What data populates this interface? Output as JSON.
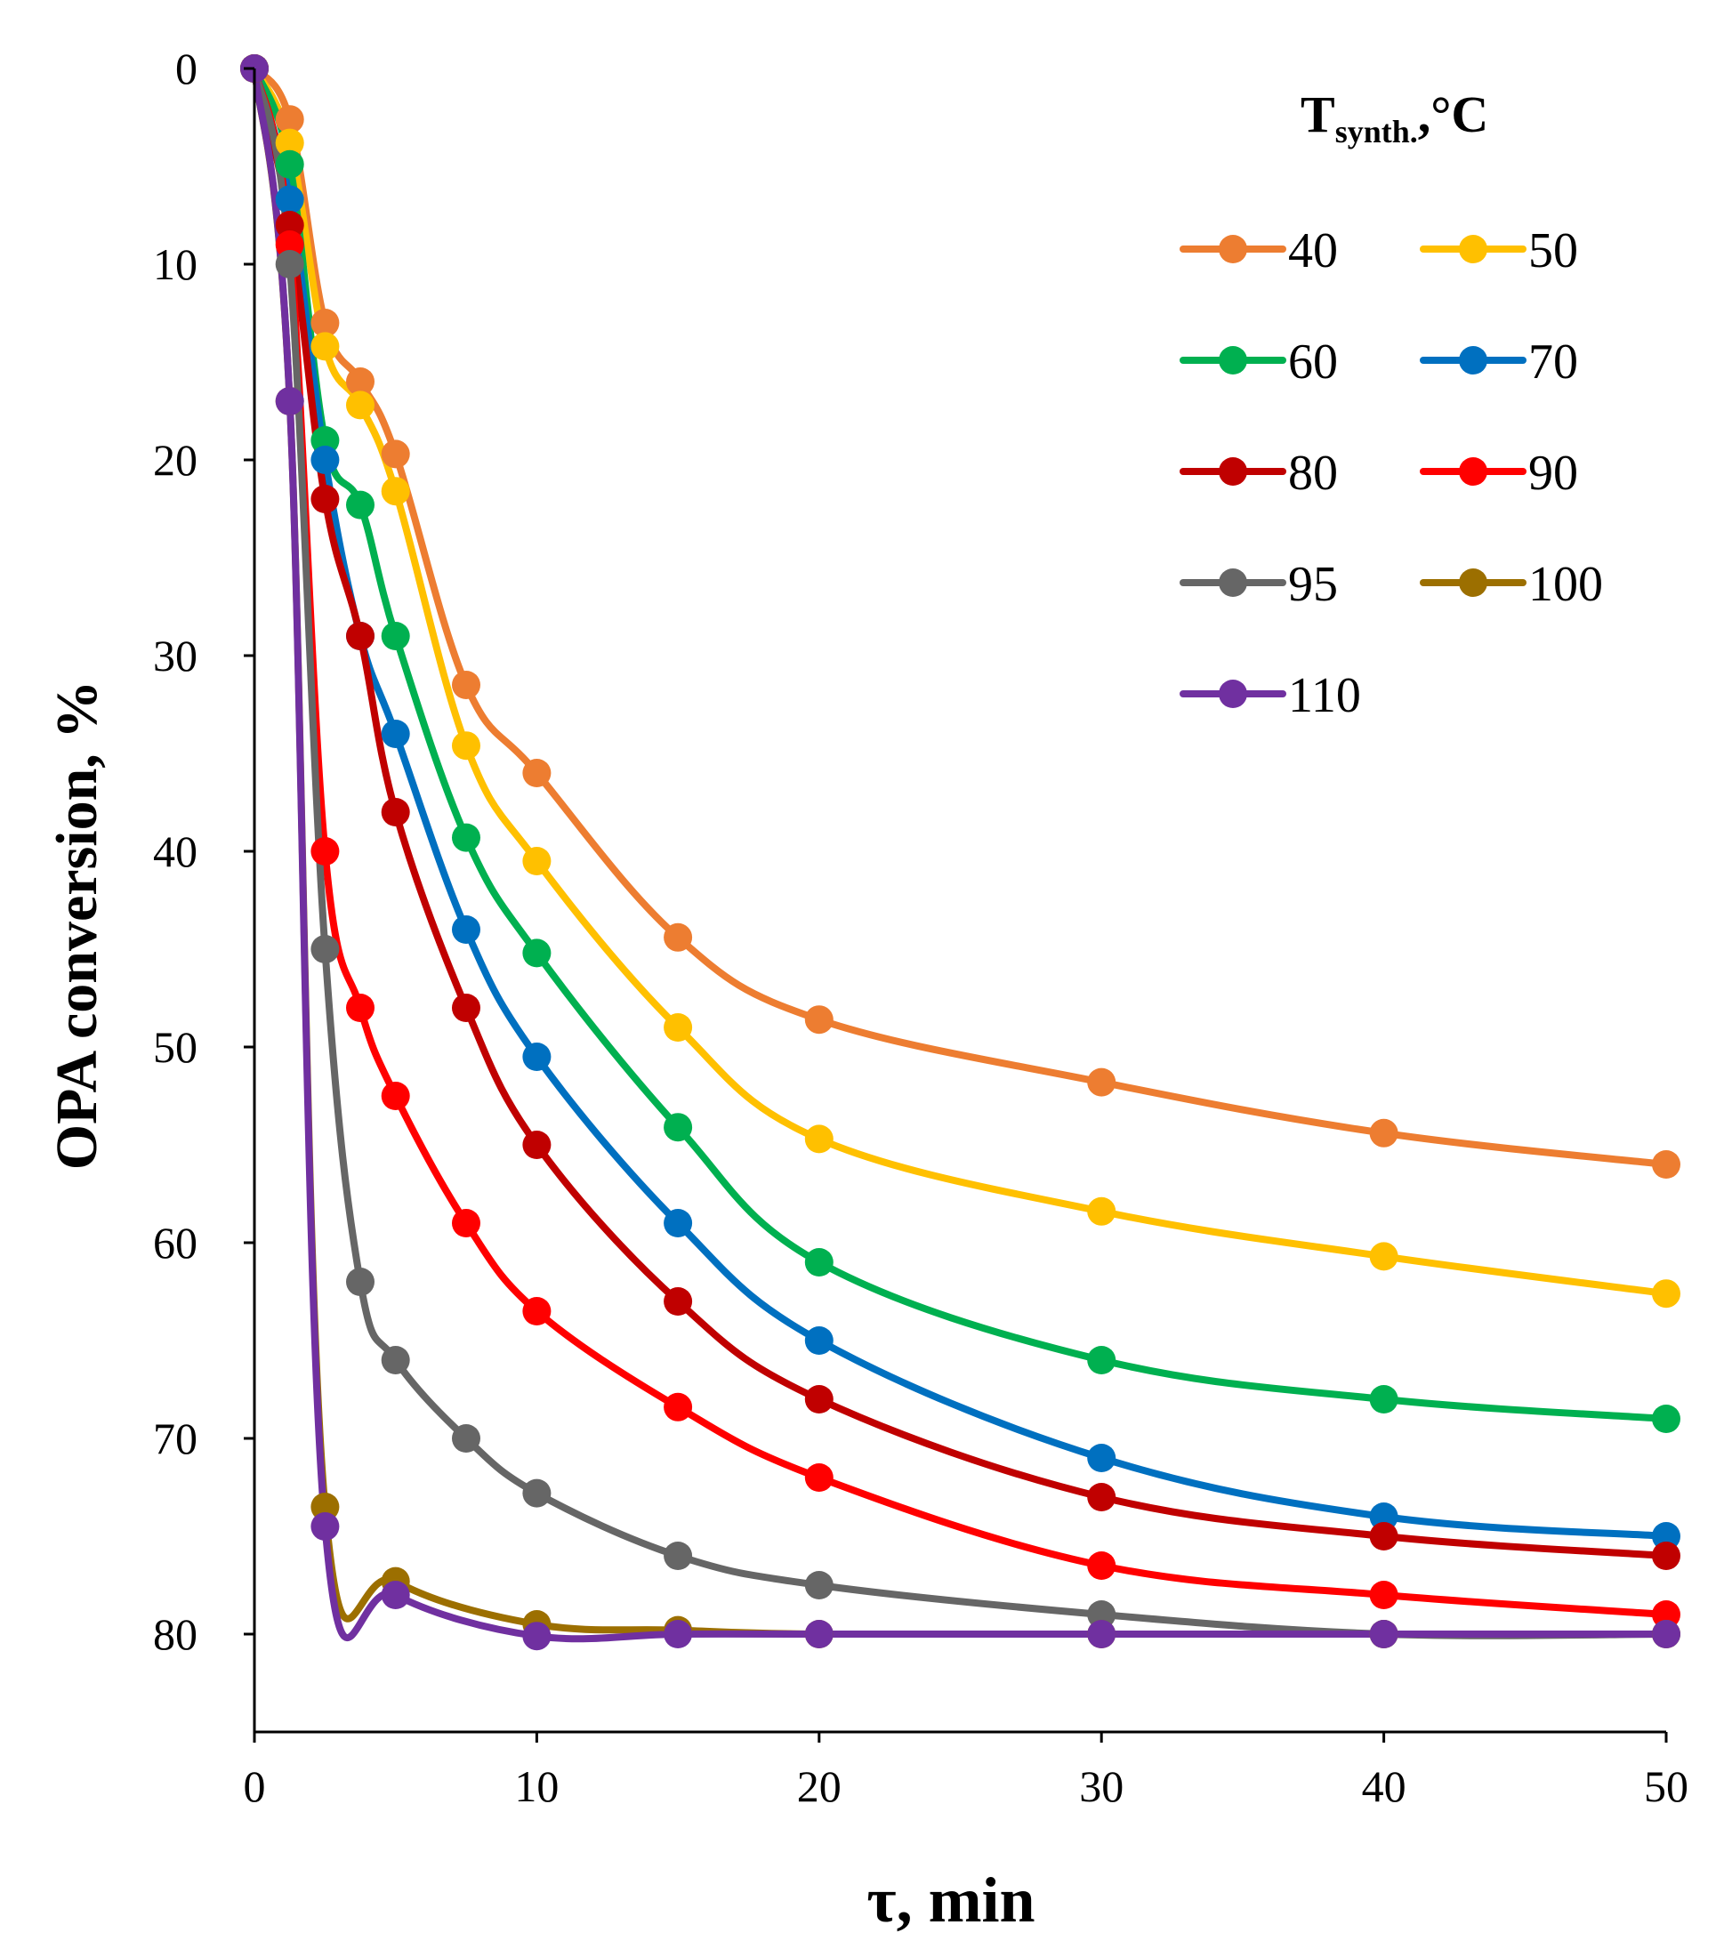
{
  "chart_data": {
    "type": "line",
    "xlabel": "τ, min",
    "ylabel": "OPA conversion, %",
    "xlim": [
      0,
      50
    ],
    "ylim": [
      0,
      85
    ],
    "y_inverted": true,
    "xticks": [
      "0",
      "10",
      "20",
      "30",
      "40",
      "50"
    ],
    "yticks": [
      "0",
      "10",
      "20",
      "30",
      "40",
      "50",
      "60",
      "70",
      "80"
    ],
    "grid": false,
    "legend": {
      "title_main": "T",
      "title_sub": "synth.",
      "title_unit": ",°C",
      "position": "top-right",
      "columns": 2
    },
    "series": [
      {
        "name": "40",
        "color": "#ED7D31",
        "x": [
          0,
          1.25,
          2.5,
          3.75,
          5,
          7.5,
          10,
          15,
          20,
          30,
          40,
          50
        ],
        "y": [
          0,
          2.6,
          13,
          16,
          19.7,
          31.5,
          36,
          44.4,
          48.6,
          51.8,
          54.4,
          56
        ]
      },
      {
        "name": "50",
        "color": "#FFC000",
        "x": [
          0,
          1.25,
          2.5,
          3.75,
          5,
          7.5,
          10,
          15,
          20,
          30,
          40,
          50
        ],
        "y": [
          0,
          3.8,
          14.2,
          17.2,
          21.6,
          34.6,
          40.5,
          49,
          54.7,
          58.4,
          60.7,
          62.6
        ]
      },
      {
        "name": "60",
        "color": "#00B050",
        "x": [
          0,
          1.25,
          2.5,
          3.75,
          5,
          7.5,
          10,
          15,
          20,
          30,
          40,
          50
        ],
        "y": [
          0,
          4.9,
          19,
          22.3,
          29,
          39.3,
          45.2,
          54.1,
          61,
          66,
          68,
          69
        ]
      },
      {
        "name": "70",
        "color": "#0070C0",
        "x": [
          0,
          1.25,
          2.5,
          3.75,
          5,
          7.5,
          10,
          15,
          20,
          30,
          40,
          50
        ],
        "y": [
          0,
          6.7,
          20,
          29,
          34,
          44,
          50.5,
          59,
          65,
          71,
          74,
          75
        ]
      },
      {
        "name": "80",
        "color": "#C00000",
        "x": [
          0,
          1.25,
          2.5,
          3.75,
          5,
          7.5,
          10,
          15,
          20,
          30,
          40,
          50
        ],
        "y": [
          0,
          8,
          22,
          29,
          38,
          48,
          55,
          63,
          68,
          73,
          75,
          76
        ]
      },
      {
        "name": "90",
        "color": "#FF0000",
        "x": [
          0,
          1.25,
          2.5,
          3.75,
          5,
          7.5,
          10,
          15,
          20,
          30,
          40,
          50
        ],
        "y": [
          0,
          9,
          40,
          48,
          52.5,
          59,
          63.5,
          68.4,
          72,
          76.5,
          78,
          79
        ]
      },
      {
        "name": "95",
        "color": "#666666",
        "x": [
          0,
          1.25,
          2.5,
          3.75,
          5,
          7.5,
          10,
          15,
          20,
          30,
          40,
          50
        ],
        "y": [
          0,
          10,
          45,
          62,
          66,
          70,
          72.8,
          76,
          77.5,
          79,
          80,
          80
        ]
      },
      {
        "name": "100",
        "color": "#9C6F00",
        "x": [
          0,
          1.25,
          2.5,
          5,
          10,
          15,
          20,
          30,
          40,
          50
        ],
        "y": [
          0,
          17,
          73.5,
          77.3,
          79.5,
          79.8,
          80,
          80,
          80,
          80
        ]
      },
      {
        "name": "110",
        "color": "#7030A0",
        "x": [
          0,
          1.25,
          2.5,
          5,
          10,
          15,
          20,
          30,
          40,
          50
        ],
        "y": [
          0,
          17,
          74.5,
          78,
          80.1,
          80,
          80,
          80,
          80,
          80
        ]
      }
    ]
  }
}
